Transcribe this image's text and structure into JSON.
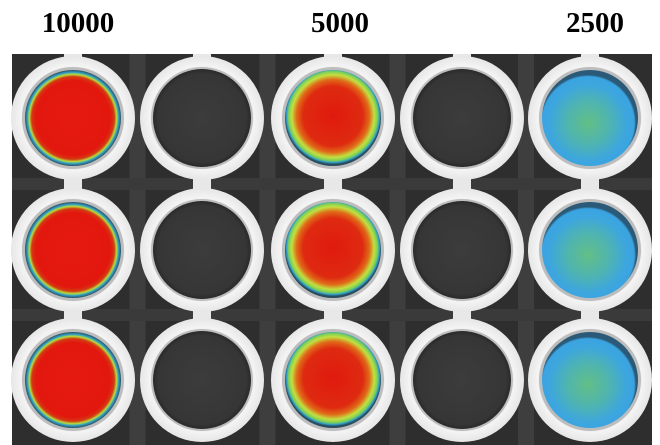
{
  "header": {
    "labels": [
      "10000",
      "5000",
      "2500"
    ]
  }
}
